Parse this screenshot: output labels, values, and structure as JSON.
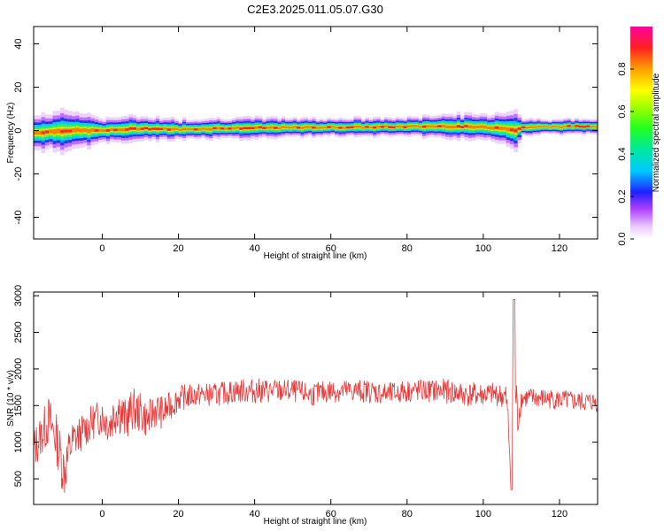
{
  "title": "C2E3.2025.011.05.07.G30",
  "chart_data": [
    {
      "type": "heatmap",
      "xlabel": "Height of straight line (km)",
      "ylabel": "Frequency (Hz)",
      "xlim": [
        -18,
        130
      ],
      "ylim": [
        -50,
        48
      ],
      "x_ticks": [
        0,
        20,
        40,
        60,
        80,
        100,
        120
      ],
      "y_ticks": [
        -40,
        -20,
        0,
        20,
        40
      ],
      "colorbar": {
        "label": "Normalized spectral amplitude",
        "range": [
          0.0,
          1.0
        ],
        "ticks": [
          0.0,
          0.2,
          0.4,
          0.6,
          0.8
        ]
      },
      "ridge": {
        "description_values": "center frequency (Hz) of the spectral ridge vs height (km)",
        "x": [
          -18,
          -10,
          0,
          10,
          20,
          30,
          40,
          50,
          60,
          70,
          80,
          90,
          100,
          105,
          108,
          110,
          120,
          130
        ],
        "center": [
          -1,
          0,
          0,
          1,
          0.5,
          1,
          1.2,
          1.4,
          1.5,
          1.6,
          1.8,
          2,
          1.5,
          1.2,
          0,
          1.5,
          1.8,
          2
        ],
        "half_width": [
          4,
          5,
          3,
          3,
          2.5,
          2.5,
          2.5,
          2.3,
          2.2,
          2.2,
          2.2,
          3,
          3,
          4,
          5,
          2,
          1.8,
          1.8
        ]
      }
    },
    {
      "type": "line",
      "xlabel": "Height of straight line (km)",
      "ylabel": "SNR (10 * v/v)",
      "xlim": [
        -18,
        130
      ],
      "ylim": [
        150,
        3050
      ],
      "x_ticks": [
        0,
        20,
        40,
        60,
        80,
        100,
        120
      ],
      "y_ticks": [
        500,
        1000,
        1500,
        2000,
        2500,
        3000
      ],
      "series": [
        {
          "color": "#e83a3a",
          "x": [
            -18,
            -16,
            -14,
            -12,
            -10,
            -8,
            -6,
            -4,
            -2,
            0,
            2,
            4,
            6,
            8,
            10,
            12,
            14,
            16,
            18,
            20,
            25,
            30,
            35,
            40,
            45,
            50,
            55,
            60,
            65,
            70,
            75,
            80,
            85,
            90,
            95,
            100,
            104,
            106,
            107,
            108,
            109,
            110,
            115,
            120,
            125,
            130
          ],
          "values": [
            900,
            1100,
            1300,
            1050,
            600,
            1000,
            1100,
            1200,
            1300,
            1350,
            1250,
            1500,
            1300,
            1450,
            1400,
            1300,
            1450,
            1400,
            1500,
            1600,
            1650,
            1650,
            1700,
            1700,
            1700,
            1700,
            1650,
            1700,
            1700,
            1700,
            1650,
            1700,
            1700,
            1700,
            1650,
            1650,
            1650,
            1600,
            900,
            2100,
            1300,
            1600,
            1600,
            1580,
            1550,
            1550
          ],
          "noise_amplitude": [
            300,
            300,
            350,
            350,
            400,
            300,
            250,
            250,
            250,
            250,
            300,
            350,
            300,
            300,
            280,
            250,
            250,
            220,
            200,
            180,
            160,
            160,
            170,
            170,
            170,
            160,
            160,
            160,
            160,
            160,
            160,
            160,
            160,
            170,
            170,
            170,
            160,
            200,
            400,
            600,
            300,
            150,
            140,
            140,
            140,
            140
          ]
        }
      ]
    }
  ]
}
